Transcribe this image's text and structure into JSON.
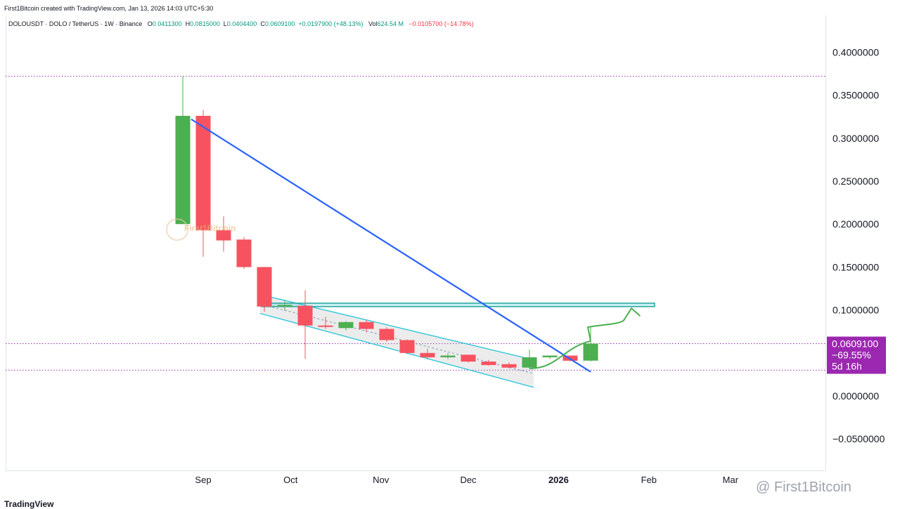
{
  "header": {
    "created_line": "First1Bitcoin created with TradingView.com, Jan 13, 2026 14:03 UTC+5:30",
    "symbol_line": "DOLOUSDT · DOLO / TetherUS · 1W · Binance",
    "o_label": "O",
    "o_value": "0.0411300",
    "h_label": "H",
    "h_value": "0.0815000",
    "l_label": "L",
    "l_value": "0.0404400",
    "c_label": "C",
    "c_value": "0.0609100",
    "change": "+0.0197900 (+48.13%)",
    "vol_label": "Vol",
    "vol_value": "624.54 M",
    "vol_change": "−0.0105700 (−14.78%)"
  },
  "price_badge": {
    "price": "0.0609100",
    "pct": "−69.55%",
    "countdown": "5d 16h",
    "color": "#9c27b0"
  },
  "watermark": "@ First1Bitcoin",
  "center_watermark": "First1Bitcoin",
  "footer_logo": "TradingView",
  "colors": {
    "up": "#4caf50",
    "down": "#f7525f",
    "trendline": "#2962ff",
    "channel": "#26c6da",
    "resistance": "#26a69a",
    "arrow": "#4caf50"
  },
  "chart_data": {
    "type": "candlestick",
    "x_labels": [
      "Sep",
      "Oct",
      "Nov",
      "Dec",
      "2026",
      "Feb",
      "Mar"
    ],
    "y_ticks": [
      "0.4000000",
      "0.3500000",
      "0.3000000",
      "0.2500000",
      "0.2000000",
      "0.1500000",
      "0.1000000",
      "0.0500000",
      "0.0000000",
      "−0.0500000"
    ],
    "ylim": [
      -0.07,
      0.44
    ],
    "candles": [
      {
        "week": "2025-08-25",
        "o": 0.2,
        "h": 0.372,
        "l": 0.2,
        "c": 0.326
      },
      {
        "week": "2025-09-01",
        "o": 0.326,
        "h": 0.333,
        "l": 0.162,
        "c": 0.193
      },
      {
        "week": "2025-09-08",
        "o": 0.193,
        "h": 0.209,
        "l": 0.168,
        "c": 0.181
      },
      {
        "week": "2025-09-15",
        "o": 0.182,
        "h": 0.185,
        "l": 0.148,
        "c": 0.15
      },
      {
        "week": "2025-09-22",
        "o": 0.15,
        "h": 0.15,
        "l": 0.098,
        "c": 0.104
      },
      {
        "week": "2025-09-29",
        "o": 0.104,
        "h": 0.112,
        "l": 0.099,
        "c": 0.106
      },
      {
        "week": "2025-10-06",
        "o": 0.105,
        "h": 0.123,
        "l": 0.043,
        "c": 0.082
      },
      {
        "week": "2025-10-13",
        "o": 0.082,
        "h": 0.092,
        "l": 0.078,
        "c": 0.081
      },
      {
        "week": "2025-10-20",
        "o": 0.079,
        "h": 0.087,
        "l": 0.076,
        "c": 0.086
      },
      {
        "week": "2025-10-27",
        "o": 0.086,
        "h": 0.089,
        "l": 0.074,
        "c": 0.078
      },
      {
        "week": "2025-11-03",
        "o": 0.078,
        "h": 0.08,
        "l": 0.063,
        "c": 0.065
      },
      {
        "week": "2025-11-10",
        "o": 0.065,
        "h": 0.066,
        "l": 0.049,
        "c": 0.05
      },
      {
        "week": "2025-11-17",
        "o": 0.05,
        "h": 0.055,
        "l": 0.043,
        "c": 0.045
      },
      {
        "week": "2025-11-24",
        "o": 0.045,
        "h": 0.05,
        "l": 0.043,
        "c": 0.047
      },
      {
        "week": "2025-12-01",
        "o": 0.048,
        "h": 0.048,
        "l": 0.039,
        "c": 0.04
      },
      {
        "week": "2025-12-08",
        "o": 0.04,
        "h": 0.042,
        "l": 0.035,
        "c": 0.036
      },
      {
        "week": "2025-12-15",
        "o": 0.037,
        "h": 0.039,
        "l": 0.032,
        "c": 0.033
      },
      {
        "week": "2025-12-22",
        "o": 0.033,
        "h": 0.054,
        "l": 0.032,
        "c": 0.045
      },
      {
        "week": "2025-12-29",
        "o": 0.045,
        "h": 0.047,
        "l": 0.043,
        "c": 0.047
      },
      {
        "week": "2026-01-05",
        "o": 0.047,
        "h": 0.047,
        "l": 0.04,
        "c": 0.041
      },
      {
        "week": "2026-01-12",
        "o": 0.0411,
        "h": 0.0815,
        "l": 0.0404,
        "c": 0.0609
      }
    ],
    "reference_lines": [
      {
        "name": "ath",
        "price": 0.372,
        "style": "dotted",
        "color": "#9c27b0"
      },
      {
        "name": "current",
        "price": 0.0609,
        "style": "dotted",
        "color": "#9c27b0"
      },
      {
        "name": "low",
        "price": 0.03,
        "style": "dotted",
        "color": "#9c27b0"
      }
    ],
    "resistance_zone": {
      "from": 0.104,
      "to": 0.108,
      "start_week": "2025-09-22",
      "end_week": "2026-02-02"
    },
    "downtrend_line": {
      "start_week": "2025-08-25",
      "start": 0.322,
      "end_week": "2026-01-12",
      "end": 0.028
    },
    "channel": {
      "top": {
        "start_week": "2025-09-22",
        "start": 0.118,
        "end_week": "2025-12-22",
        "end": 0.042
      },
      "bottom": {
        "start_week": "2025-09-22",
        "start": 0.096,
        "end_week": "2025-12-22",
        "end": 0.01
      }
    },
    "projection": [
      {
        "week": "2025-12-22",
        "p": 0.032
      },
      {
        "week": "2026-01-12",
        "p": 0.064
      },
      {
        "week": "2026-01-12",
        "p": 0.08
      },
      {
        "week": "2026-01-19",
        "p": 0.083
      },
      {
        "week": "2026-01-26",
        "p": 0.102
      },
      {
        "week": "2026-01-29",
        "p": 0.093
      }
    ]
  }
}
